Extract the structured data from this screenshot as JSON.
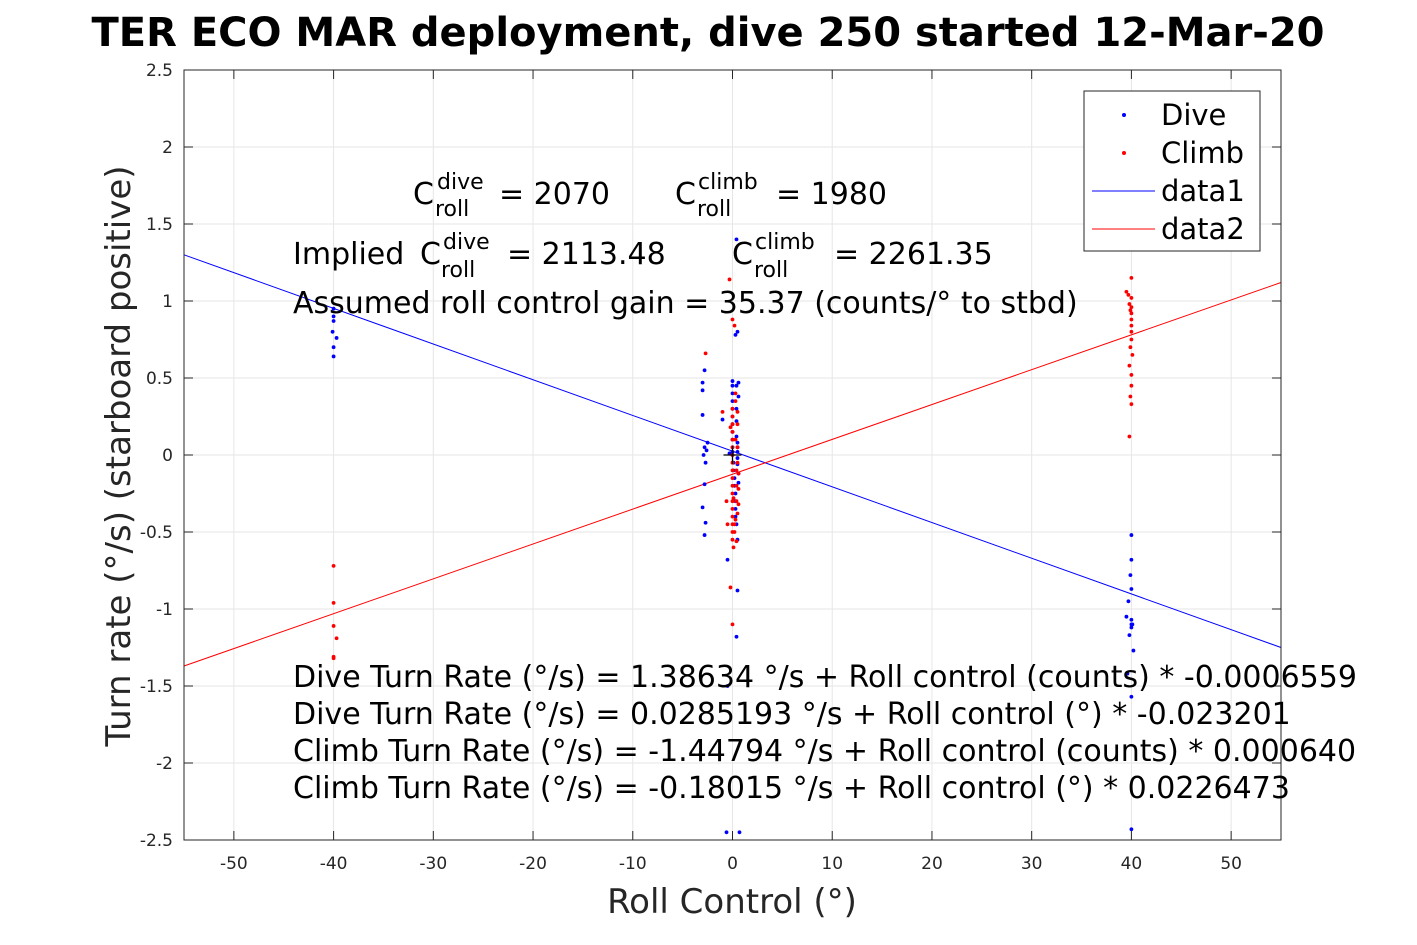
{
  "figure": {
    "title": "TER ECO MAR deployment, dive 250 started 12-Mar-20"
  },
  "chart_data": {
    "type": "scatter",
    "title": "TER ECO MAR deployment, dive 250 started 12-Mar-20",
    "xlabel": "Roll Control (°)",
    "ylabel": "Turn rate (°/s) (starboard positive)",
    "xlim": [
      -55,
      55
    ],
    "ylim": [
      -2.5,
      2.5
    ],
    "xticks": [
      -50,
      -40,
      -30,
      -20,
      -10,
      0,
      10,
      20,
      30,
      40,
      50
    ],
    "xtick_labels": [
      "-50",
      "-40",
      "-30",
      "-20",
      "-10",
      "0",
      "10",
      "20",
      "30",
      "40",
      "50"
    ],
    "yticks": [
      2.5,
      2,
      1.5,
      1,
      0.5,
      0,
      -0.5,
      -1,
      -1.5,
      -2,
      -2.5
    ],
    "ytick_labels": [
      "2.5",
      "2",
      "1.5",
      "1",
      "0.5",
      "0",
      "-0.5",
      "-1",
      "-1.5",
      "-2",
      "-2.5"
    ],
    "grid": true,
    "legend_position": "top-right",
    "colors": {
      "dive": "#0000ff",
      "climb": "#ff0000",
      "axes": "#262626",
      "grid": "#e6e6e6",
      "cursor": "#000000"
    },
    "series": [
      {
        "name": "Dive",
        "kind": "points",
        "color": "#0000ff",
        "x": [
          -40,
          -40,
          -40,
          -40,
          -40,
          -39.7,
          -40.1,
          -3,
          -3,
          -2.8,
          -3,
          -2.5,
          -2.8,
          -2.6,
          -2.9,
          -2.7,
          -2.8,
          -3,
          -2.7,
          -2.8,
          -1,
          -0.5,
          -0.3,
          0,
          0,
          0,
          0,
          0,
          0,
          0,
          0,
          0,
          0,
          0,
          0,
          0.1,
          0.1,
          0.2,
          0.2,
          0.3,
          0.3,
          0.3,
          0.3,
          0.4,
          0.4,
          0.4,
          0.4,
          0.5,
          0.5,
          0.5,
          0.5,
          0.5,
          0.6,
          0.4,
          0.6,
          0.6,
          0.6,
          0.4,
          0.5,
          0.3,
          0.5,
          0.4,
          -0.5,
          -0.6,
          0.7,
          0.5,
          39.5,
          39.7,
          39.9,
          40,
          40,
          40,
          40,
          40,
          40,
          39.8,
          40.2,
          40.1,
          39.6,
          40,
          40
        ],
        "y": [
          0.95,
          0.9,
          0.87,
          0.7,
          0.64,
          0.76,
          0.8,
          0.47,
          0.42,
          0.55,
          0.26,
          0.08,
          0.05,
          0.03,
          0,
          -0.05,
          -0.19,
          -0.34,
          -0.44,
          -0.52,
          0.23,
          -0.68,
          0.01,
          0.02,
          0,
          0.05,
          0.1,
          0.15,
          0.2,
          0.25,
          0.3,
          0.35,
          0.4,
          0.45,
          0.48,
          -0.1,
          -0.05,
          -0.15,
          -0.2,
          -0.25,
          -0.3,
          -0.35,
          -0.4,
          -0.45,
          0.3,
          0.22,
          0.12,
          0.05,
          0.08,
          0.02,
          -0.02,
          -0.06,
          0.38,
          0.45,
          0.47,
          -0.12,
          -0.18,
          1.4,
          0.8,
          0.78,
          -0.88,
          -1.18,
          -1.5,
          -2.45,
          -2.45,
          -0.55,
          -1.05,
          -0.95,
          -0.78,
          -0.52,
          -0.68,
          -0.87,
          -1.07,
          -1.1,
          -1.12,
          -1.17,
          -1.27,
          -1.1,
          -1.42,
          -1.57,
          -2.43
        ]
      },
      {
        "name": "Climb",
        "kind": "points",
        "color": "#ff0000",
        "x": [
          -40,
          -40,
          -40,
          -40,
          -40,
          -39.7,
          -2.7,
          -1,
          -0.6,
          -0.5,
          0,
          0,
          0,
          0,
          0,
          0,
          0,
          0,
          0,
          0,
          0,
          0,
          0,
          0,
          0,
          0,
          0,
          0,
          0.1,
          0.2,
          0.2,
          0.3,
          0.3,
          0.3,
          0.4,
          0.4,
          0.4,
          0.5,
          0.5,
          0.5,
          0.5,
          0.6,
          0.6,
          0.6,
          -0.3,
          0,
          0.2,
          -0.2,
          0,
          0.4,
          0.3,
          -0.2,
          0.5,
          0.1,
          39.5,
          39.7,
          39.8,
          39.9,
          40,
          40,
          40,
          40,
          40,
          40,
          40,
          40,
          39.9,
          40.1,
          39.8,
          40,
          40,
          39.9,
          40,
          39.8
        ],
        "y": [
          -0.72,
          -0.96,
          -1.11,
          -1.31,
          -1.32,
          -1.19,
          0.66,
          0.28,
          -0.3,
          -0.45,
          0.1,
          0.05,
          0,
          -0.05,
          -0.1,
          -0.15,
          -0.2,
          -0.25,
          -0.3,
          -0.35,
          -0.4,
          -0.45,
          -0.5,
          -0.55,
          0.15,
          0.2,
          0.25,
          0.3,
          -0.6,
          -0.5,
          -0.45,
          0.4,
          0.35,
          0.1,
          -0.3,
          -0.2,
          -0.1,
          0.05,
          -0.05,
          0.2,
          0.28,
          -0.32,
          -0.22,
          -0.12,
          1.14,
          0.88,
          0.84,
          -0.86,
          -1.1,
          -0.56,
          -0.42,
          0.18,
          -0.38,
          -0.28,
          1.06,
          1.04,
          0.98,
          0.94,
          1.15,
          1.02,
          0.96,
          0.92,
          0.88,
          0.84,
          0.8,
          0.75,
          0.7,
          0.65,
          0.58,
          0.52,
          0.45,
          0.38,
          0.33,
          0.12
        ],
        "y_extra": [
          -0.11
        ]
      },
      {
        "name": "data1",
        "kind": "line",
        "color": "#0000ff",
        "x": [
          -55,
          55
        ],
        "y": [
          1.3,
          -1.25
        ]
      },
      {
        "name": "data2",
        "kind": "line",
        "color": "#ff0000",
        "x": [
          -55,
          55
        ],
        "y": [
          -1.37,
          1.12
        ]
      }
    ],
    "cursor_marker": {
      "x": 0,
      "y": 0,
      "symbol": "+"
    },
    "annotations": {
      "c_base": "C",
      "c_sub": "roll",
      "dive_sup": "dive",
      "climb_sup": "climb",
      "c_dive_value": "= 2070",
      "c_climb_value": "= 1980",
      "implied_prefix": "Implied ",
      "implied_dive_value": "= 2113.48",
      "implied_climb_value": "= 2261.35",
      "gain_line": "Assumed roll control gain = 35.37 (counts/° to stbd)",
      "equations": [
        "Dive Turn Rate (°/s) = 1.38634 °/s + Roll control (counts) * -0.0006559",
        "Dive Turn Rate (°/s) = 0.0285193 °/s + Roll control (°) * -0.023201",
        "Climb Turn Rate (°/s) = -1.44794 °/s + Roll control (counts) * 0.000640",
        "Climb Turn Rate (°/s) = -0.18015 °/s + Roll control (°) * 0.0226473"
      ]
    }
  }
}
